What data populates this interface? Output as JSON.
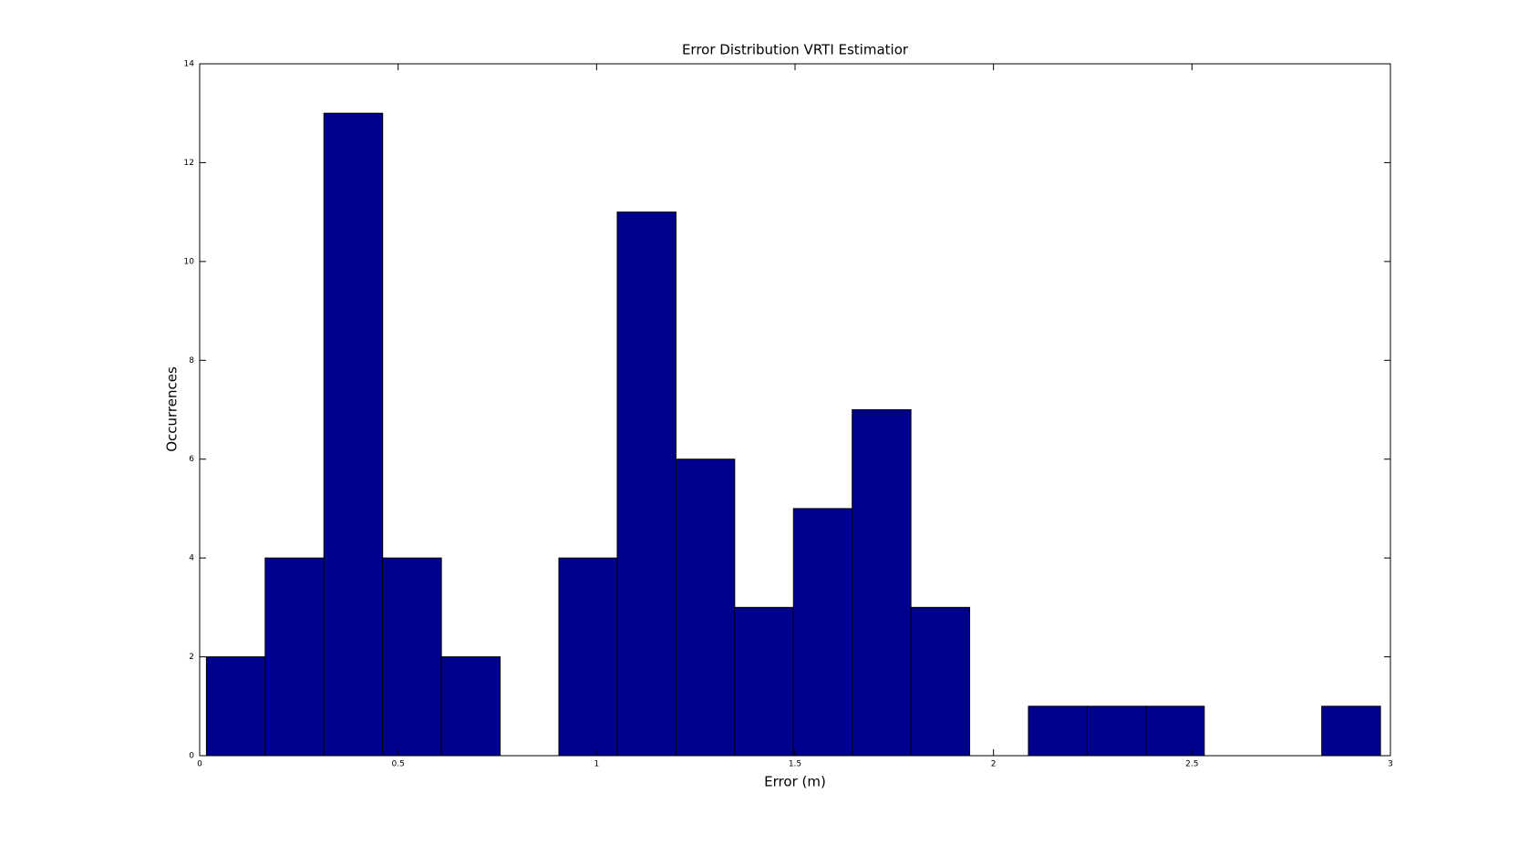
{
  "chart_data": {
    "type": "histogram",
    "title": "Error Distribution VRTI Estimatior",
    "x_label": "Error (m)",
    "y_label": "Occurrences",
    "bins": [
      0.017,
      0.165,
      0.313,
      0.461,
      0.609,
      0.757,
      0.905,
      1.052,
      1.2,
      1.348,
      1.496,
      1.644,
      1.792,
      1.94,
      2.088,
      2.236,
      2.384,
      2.531,
      2.679,
      2.827,
      2.975
    ],
    "values": [
      2,
      4,
      13,
      4,
      2,
      0,
      4,
      11,
      6,
      3,
      5,
      7,
      3,
      0,
      1,
      1,
      1,
      0,
      0,
      1
    ],
    "color": "#00008f",
    "xlim": [
      0,
      3
    ],
    "xticks": [
      0,
      0.5,
      1,
      1.5,
      2,
      2.5,
      3
    ],
    "ylim": [
      0,
      14
    ],
    "yticks": [
      0,
      2,
      4,
      6,
      8,
      10,
      12,
      14
    ]
  }
}
